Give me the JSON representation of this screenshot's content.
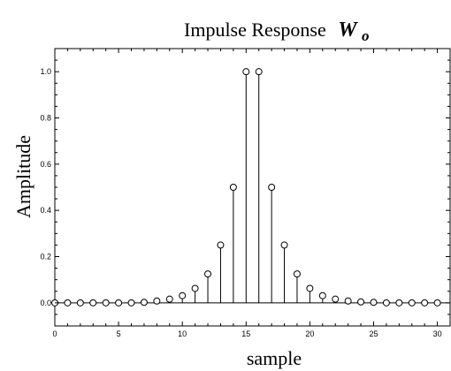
{
  "chart_data": {
    "type": "stem",
    "title": "Impulse Response",
    "title_symbol": "W",
    "title_subscript": "o",
    "xlabel": "sample",
    "ylabel": "Amplitude",
    "xlim": [
      0,
      31
    ],
    "ylim": [
      -0.1,
      1.1
    ],
    "xticks": [
      0,
      5,
      10,
      15,
      20,
      25,
      30
    ],
    "yticks": [
      0.0,
      0.2,
      0.4,
      0.6,
      0.8,
      1.0
    ],
    "ytick_labels": [
      "0.0",
      "0.2",
      "0.4",
      "0.6",
      "0.8",
      "1.0"
    ],
    "grid": false,
    "baseline": 0,
    "marker": "circle",
    "color": "#000000",
    "x": [
      0,
      1,
      2,
      3,
      4,
      5,
      6,
      7,
      8,
      9,
      10,
      11,
      12,
      13,
      14,
      15,
      16,
      17,
      18,
      19,
      20,
      21,
      22,
      23,
      24,
      25,
      26,
      27,
      28,
      29,
      30
    ],
    "values": [
      0,
      0,
      0,
      0,
      0,
      0,
      0,
      0.002,
      0.008,
      0.016,
      0.031,
      0.0625,
      0.125,
      0.25,
      0.5,
      1.0,
      1.0,
      0.5,
      0.25,
      0.125,
      0.0625,
      0.031,
      0.016,
      0.008,
      0.004,
      0.002,
      0,
      0,
      0,
      0,
      0
    ]
  }
}
